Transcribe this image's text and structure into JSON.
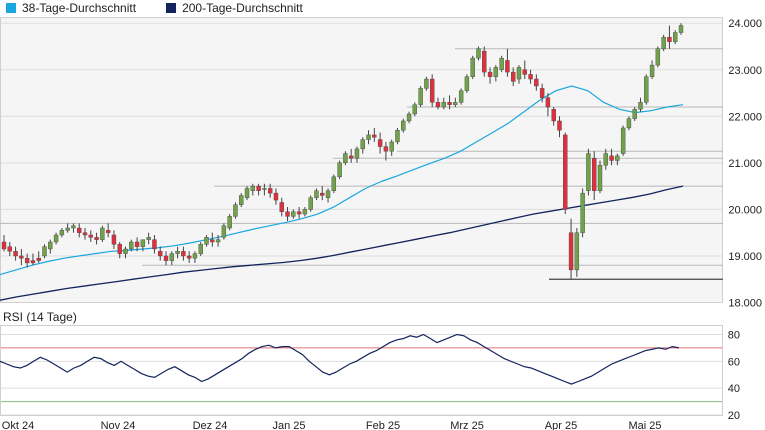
{
  "legend": {
    "ma38_label": "38-Tage-Durchschnitt",
    "ma200_label": "200-Tage-Durchschnitt"
  },
  "rsi_label": "RSI (14 Tage)",
  "colors": {
    "ma38": "#1aa7e0",
    "ma200": "#13235e",
    "up": "#6fa24a",
    "down": "#e0303e",
    "rsi": "#13235e",
    "rsi_upper": "#e07070",
    "rsi_lower": "#7fc07f",
    "grid": "#dddddd",
    "plot_bg": "#f5f5f5"
  },
  "chart_data": [
    {
      "type": "candlestick",
      "name": "price",
      "ylim": [
        18.0,
        24.1
      ],
      "ytick_labels": [
        "18.000",
        "19.000",
        "20.000",
        "21.000",
        "22.000",
        "23.000",
        "24.000"
      ],
      "xtick_labels": [
        "Okt 24",
        "Nov 24",
        "Dez 24",
        "Jan 25",
        "Feb 25",
        "Mrz 25",
        "Apr 25",
        "Mai 25"
      ],
      "grid": true,
      "horizontal_levels": [
        18.5,
        18.8,
        19.7,
        20.5,
        21.1,
        21.25,
        22.2,
        23.45
      ],
      "series": [
        {
          "legend_key": "ma38",
          "values": [
            18.6,
            18.7,
            18.8,
            18.88,
            18.95,
            19.0,
            19.05,
            19.1,
            19.12,
            19.15,
            19.18,
            19.22,
            19.28,
            19.35,
            19.42,
            19.5,
            19.58,
            19.65,
            19.72,
            19.8,
            19.9,
            20.05,
            20.25,
            20.45,
            20.6,
            20.72,
            20.85,
            20.98,
            21.1,
            21.25,
            21.45,
            21.65,
            21.85,
            22.1,
            22.35,
            22.55,
            22.65,
            22.55,
            22.3,
            22.15,
            22.08,
            22.12,
            22.2,
            22.25
          ]
        },
        {
          "legend_key": "ma200",
          "values": [
            18.05,
            18.12,
            18.18,
            18.24,
            18.3,
            18.35,
            18.4,
            18.45,
            18.5,
            18.55,
            18.6,
            18.65,
            18.69,
            18.73,
            18.77,
            18.8,
            18.83,
            18.86,
            18.9,
            18.95,
            19.01,
            19.08,
            19.15,
            19.22,
            19.29,
            19.36,
            19.43,
            19.5,
            19.58,
            19.66,
            19.74,
            19.82,
            19.9,
            19.96,
            20.02,
            20.08,
            20.14,
            20.2,
            20.26,
            20.33,
            20.42,
            20.5
          ]
        }
      ],
      "candles": [
        [
          19.3,
          19.45,
          19.15,
          19.1
        ],
        [
          19.2,
          19.3,
          19.1,
          19.0
        ],
        [
          19.1,
          19.2,
          19.0,
          18.9
        ],
        [
          19.0,
          19.15,
          18.95,
          18.8
        ],
        [
          18.95,
          19.05,
          18.85,
          18.75
        ],
        [
          18.9,
          19.05,
          18.85,
          18.8
        ],
        [
          18.95,
          19.1,
          18.9,
          18.85
        ],
        [
          19.0,
          19.25,
          19.2,
          18.95
        ],
        [
          19.15,
          19.35,
          19.3,
          19.05
        ],
        [
          19.3,
          19.5,
          19.45,
          19.25
        ],
        [
          19.45,
          19.6,
          19.55,
          19.4
        ],
        [
          19.55,
          19.7,
          19.6,
          19.5
        ],
        [
          19.6,
          19.7,
          19.65,
          19.5
        ],
        [
          19.6,
          19.7,
          19.5,
          19.4
        ],
        [
          19.5,
          19.6,
          19.45,
          19.35
        ],
        [
          19.45,
          19.55,
          19.4,
          19.3
        ],
        [
          19.4,
          19.5,
          19.35,
          19.25
        ],
        [
          19.35,
          19.65,
          19.6,
          19.3
        ],
        [
          19.55,
          19.7,
          19.5,
          19.4
        ],
        [
          19.45,
          19.55,
          19.25,
          19.15
        ],
        [
          19.25,
          19.3,
          19.05,
          18.95
        ],
        [
          19.05,
          19.2,
          19.15,
          18.95
        ],
        [
          19.15,
          19.35,
          19.3,
          19.1
        ],
        [
          19.3,
          19.4,
          19.2,
          19.1
        ],
        [
          19.2,
          19.35,
          19.35,
          19.1
        ],
        [
          19.35,
          19.5,
          19.4,
          19.25
        ],
        [
          19.35,
          19.45,
          19.15,
          19.05
        ],
        [
          19.1,
          19.2,
          19.0,
          18.9
        ],
        [
          19.0,
          19.1,
          18.9,
          18.8
        ],
        [
          18.9,
          19.1,
          19.05,
          18.8
        ],
        [
          19.05,
          19.2,
          19.1,
          18.95
        ],
        [
          19.1,
          19.2,
          19.0,
          18.9
        ],
        [
          19.0,
          19.1,
          18.95,
          18.85
        ],
        [
          18.95,
          19.1,
          19.05,
          18.85
        ],
        [
          19.05,
          19.3,
          19.25,
          19.0
        ],
        [
          19.25,
          19.45,
          19.4,
          19.2
        ],
        [
          19.35,
          19.5,
          19.3,
          19.2
        ],
        [
          19.3,
          19.45,
          19.35,
          19.2
        ],
        [
          19.4,
          19.7,
          19.65,
          19.35
        ],
        [
          19.6,
          19.9,
          19.85,
          19.55
        ],
        [
          19.85,
          20.15,
          20.1,
          19.8
        ],
        [
          20.1,
          20.35,
          20.3,
          20.05
        ],
        [
          20.25,
          20.5,
          20.45,
          20.2
        ],
        [
          20.4,
          20.55,
          20.5,
          20.3
        ],
        [
          20.5,
          20.55,
          20.4,
          20.3
        ],
        [
          20.45,
          20.55,
          20.45,
          20.3
        ],
        [
          20.45,
          20.55,
          20.35,
          20.25
        ],
        [
          20.35,
          20.45,
          20.2,
          20.1
        ],
        [
          20.15,
          20.25,
          19.95,
          19.85
        ],
        [
          19.95,
          20.05,
          19.85,
          19.75
        ],
        [
          19.85,
          20.0,
          19.95,
          19.8
        ],
        [
          19.95,
          20.05,
          19.9,
          19.8
        ],
        [
          19.9,
          20.05,
          20.0,
          19.85
        ],
        [
          20.0,
          20.3,
          20.25,
          19.95
        ],
        [
          20.25,
          20.45,
          20.4,
          20.2
        ],
        [
          20.35,
          20.5,
          20.3,
          20.2
        ],
        [
          20.25,
          20.45,
          20.4,
          20.15
        ],
        [
          20.4,
          20.75,
          20.7,
          20.35
        ],
        [
          20.7,
          21.05,
          21.0,
          20.65
        ],
        [
          21.0,
          21.25,
          21.2,
          20.95
        ],
        [
          21.15,
          21.3,
          21.1,
          21.0
        ],
        [
          21.1,
          21.35,
          21.3,
          21.0
        ],
        [
          21.3,
          21.55,
          21.5,
          21.2
        ],
        [
          21.5,
          21.7,
          21.6,
          21.4
        ],
        [
          21.6,
          21.75,
          21.55,
          21.45
        ],
        [
          21.5,
          21.65,
          21.35,
          21.2
        ],
        [
          21.35,
          21.45,
          21.25,
          21.05
        ],
        [
          21.25,
          21.5,
          21.45,
          21.15
        ],
        [
          21.45,
          21.75,
          21.7,
          21.4
        ],
        [
          21.7,
          21.95,
          21.9,
          21.65
        ],
        [
          21.9,
          22.1,
          22.05,
          21.85
        ],
        [
          22.05,
          22.3,
          22.25,
          22.0
        ],
        [
          22.25,
          22.65,
          22.6,
          22.2
        ],
        [
          22.6,
          22.85,
          22.8,
          22.55
        ],
        [
          22.8,
          22.9,
          22.3,
          22.2
        ],
        [
          22.3,
          22.4,
          22.2,
          22.15
        ],
        [
          22.2,
          22.4,
          22.3,
          22.15
        ],
        [
          22.3,
          22.45,
          22.25,
          22.15
        ],
        [
          22.25,
          22.4,
          22.3,
          22.2
        ],
        [
          22.3,
          22.6,
          22.55,
          22.25
        ],
        [
          22.55,
          22.9,
          22.85,
          22.5
        ],
        [
          22.85,
          23.3,
          23.25,
          22.8
        ],
        [
          23.25,
          23.5,
          23.45,
          23.2
        ],
        [
          23.4,
          23.5,
          22.95,
          22.85
        ],
        [
          22.95,
          23.05,
          22.85,
          22.7
        ],
        [
          22.85,
          23.1,
          23.05,
          22.75
        ],
        [
          23.0,
          23.3,
          23.25,
          22.95
        ],
        [
          23.2,
          23.45,
          22.95,
          22.85
        ],
        [
          22.95,
          23.05,
          22.75,
          22.65
        ],
        [
          22.8,
          23.1,
          23.05,
          22.7
        ],
        [
          23.0,
          23.2,
          22.9,
          22.8
        ],
        [
          22.9,
          23.0,
          22.8,
          22.7
        ],
        [
          22.8,
          22.9,
          22.65,
          22.55
        ],
        [
          22.6,
          22.7,
          22.4,
          22.3
        ],
        [
          22.4,
          22.5,
          22.2,
          22.0
        ],
        [
          22.15,
          22.2,
          21.9,
          21.8
        ],
        [
          21.9,
          22.0,
          21.7,
          21.55
        ],
        [
          21.6,
          21.65,
          20.0,
          19.9
        ],
        [
          19.5,
          19.8,
          18.7,
          18.5
        ],
        [
          18.7,
          19.6,
          19.5,
          18.55
        ],
        [
          19.5,
          20.45,
          20.35,
          19.4
        ],
        [
          20.4,
          21.3,
          21.2,
          20.3
        ],
        [
          21.1,
          21.25,
          20.4,
          20.2
        ],
        [
          20.4,
          21.05,
          20.95,
          20.35
        ],
        [
          20.95,
          21.3,
          21.2,
          20.85
        ],
        [
          21.15,
          21.3,
          21.05,
          20.95
        ],
        [
          21.05,
          21.2,
          21.15,
          20.95
        ],
        [
          21.2,
          21.8,
          21.75,
          21.15
        ],
        [
          21.75,
          22.0,
          21.95,
          21.7
        ],
        [
          21.95,
          22.2,
          22.15,
          21.9
        ],
        [
          22.15,
          22.4,
          22.3,
          22.1
        ],
        [
          22.3,
          22.9,
          22.85,
          22.25
        ],
        [
          22.85,
          23.2,
          23.1,
          22.8
        ],
        [
          23.1,
          23.5,
          23.45,
          23.05
        ],
        [
          23.45,
          23.75,
          23.7,
          23.4
        ],
        [
          23.7,
          23.95,
          23.6,
          23.45
        ],
        [
          23.6,
          23.85,
          23.8,
          23.55
        ],
        [
          23.8,
          24.0,
          23.95,
          23.75
        ]
      ]
    },
    {
      "type": "line",
      "name": "rsi",
      "ylim": [
        20,
        85
      ],
      "ytick_labels": [
        "20",
        "40",
        "60",
        "80"
      ],
      "reference_lines": [
        70,
        30
      ],
      "grid": true,
      "values": [
        60,
        58,
        56,
        55,
        57,
        60,
        63,
        61,
        58,
        55,
        52,
        55,
        57,
        60,
        63,
        62,
        59,
        57,
        60,
        57,
        54,
        51,
        49,
        48,
        51,
        54,
        56,
        53,
        50,
        48,
        45,
        47,
        50,
        53,
        56,
        59,
        62,
        66,
        69,
        71,
        72,
        70,
        71,
        71,
        68,
        65,
        60,
        56,
        52,
        50,
        52,
        55,
        58,
        60,
        63,
        66,
        68,
        71,
        74,
        76,
        77,
        79,
        78,
        80,
        77,
        74,
        76,
        78,
        80,
        79,
        76,
        74,
        71,
        68,
        65,
        62,
        60,
        58,
        56,
        55,
        53,
        51,
        49,
        47,
        45,
        43,
        45,
        47,
        49,
        52,
        55,
        58,
        60,
        62,
        64,
        66,
        68,
        69,
        70,
        69,
        71,
        70
      ]
    }
  ]
}
